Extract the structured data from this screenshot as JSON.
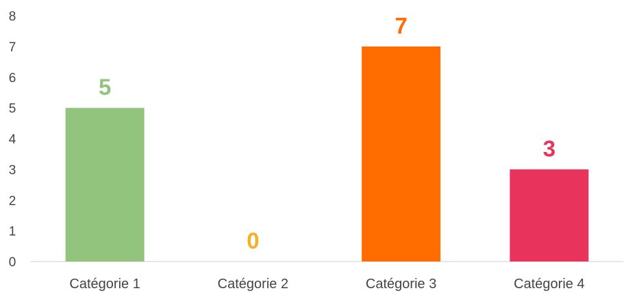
{
  "chart_data": {
    "type": "bar",
    "title": "",
    "xlabel": "",
    "ylabel": "",
    "categories": [
      "Catégorie 1",
      "Catégorie 2",
      "Catégorie 3",
      "Catégorie 4"
    ],
    "values": [
      5,
      0,
      7,
      3
    ],
    "colors": [
      "#93c47d",
      "#f6b026",
      "#ff6d00",
      "#e8345c"
    ],
    "ylim": [
      0,
      8
    ],
    "yticks": [
      "0",
      "1",
      "2",
      "3",
      "4",
      "5",
      "6",
      "7",
      "8"
    ],
    "data_labels": [
      "5",
      "0",
      "7",
      "3"
    ],
    "grid": false,
    "legend": "none",
    "axis_color": "#cccccc",
    "tick_color": "#444444"
  }
}
